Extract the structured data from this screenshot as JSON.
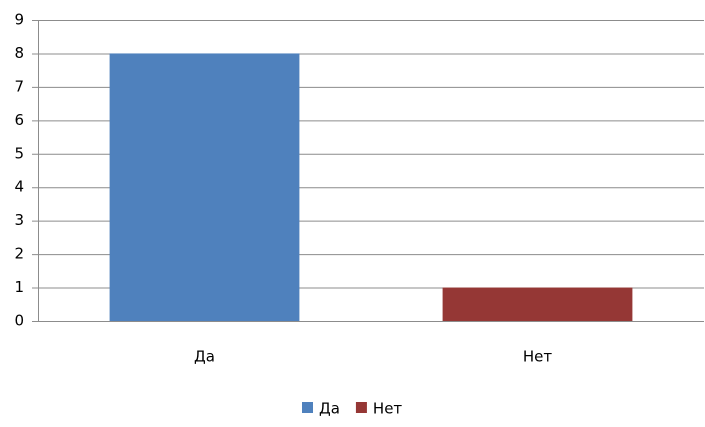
{
  "chart_data": {
    "type": "bar",
    "categories": [
      "Да",
      "Нет"
    ],
    "values": [
      8,
      1
    ],
    "colors": [
      "#4f81bd",
      "#953735"
    ],
    "ylim": [
      0,
      9
    ],
    "yticks": [
      0,
      1,
      2,
      3,
      4,
      5,
      6,
      7,
      8,
      9
    ],
    "grid": true,
    "legend": "bottom"
  }
}
